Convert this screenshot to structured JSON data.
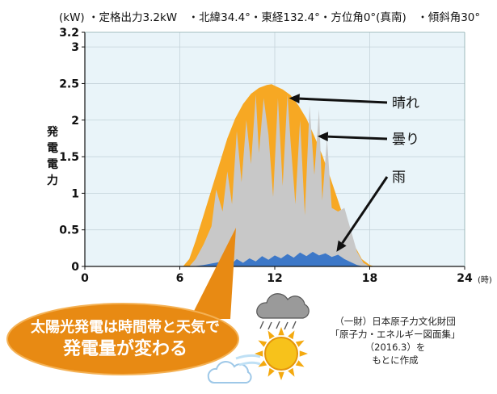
{
  "chart_data": {
    "type": "area",
    "subtitle": "(kW) ・定格出力3.2kW　・北緯34.4°・東経132.4°・方位角0°(真南)　・傾斜角30°",
    "unit_y": "(kW)",
    "unit_x": "(時)",
    "ylabel": "発電電力",
    "ylim": [
      0,
      3.2
    ],
    "xlim": [
      0,
      24
    ],
    "y_ticks": [
      "0",
      "0.5",
      "1",
      "1.5",
      "2",
      "2.5",
      "3",
      "3.2"
    ],
    "x_ticks": [
      "0",
      "6",
      "12",
      "18",
      "24"
    ],
    "grid": true,
    "series": [
      {
        "name": "晴れ",
        "color": "#f7a823",
        "x": [
          6.2,
          6.6,
          7.0,
          7.5,
          8.0,
          8.5,
          9.0,
          9.5,
          10.0,
          10.5,
          11.0,
          11.5,
          11.8,
          12.0,
          12.5,
          13.0,
          13.5,
          14.0,
          14.5,
          15.0,
          15.5,
          16.0,
          16.5,
          17.0,
          17.5,
          18.0,
          18.3
        ],
        "y": [
          0,
          0.1,
          0.35,
          0.7,
          1.05,
          1.4,
          1.75,
          2.02,
          2.22,
          2.36,
          2.44,
          2.48,
          2.49,
          2.47,
          2.42,
          2.34,
          2.2,
          2.02,
          1.78,
          1.52,
          1.22,
          0.9,
          0.58,
          0.3,
          0.1,
          0.02,
          0
        ]
      },
      {
        "name": "曇り",
        "color": "#c8c8c8",
        "x": [
          6.6,
          7.0,
          7.5,
          8.0,
          8.3,
          8.7,
          9.0,
          9.3,
          9.6,
          9.9,
          10.2,
          10.5,
          10.8,
          11.0,
          11.3,
          11.6,
          11.9,
          12.2,
          12.5,
          12.8,
          13.0,
          13.3,
          13.6,
          13.9,
          14.2,
          14.5,
          14.8,
          15.0,
          15.3,
          15.6,
          16.0,
          16.4,
          16.8,
          17.2,
          17.6,
          18.0
        ],
        "y": [
          0,
          0.1,
          0.3,
          0.55,
          1.05,
          0.75,
          1.3,
          0.85,
          1.85,
          1.15,
          2.0,
          1.4,
          2.35,
          1.55,
          2.3,
          1.8,
          0.95,
          2.3,
          1.1,
          2.35,
          1.7,
          0.85,
          2.0,
          0.7,
          2.2,
          1.25,
          2.15,
          0.9,
          1.75,
          0.8,
          0.75,
          0.8,
          0.5,
          0.2,
          0.05,
          0
        ]
      },
      {
        "name": "雨",
        "color": "#3d78c8",
        "x": [
          6.8,
          7.5,
          8.0,
          8.5,
          9.0,
          9.3,
          9.6,
          10.0,
          10.4,
          10.8,
          11.2,
          11.6,
          12.0,
          12.4,
          12.8,
          13.2,
          13.6,
          14.0,
          14.4,
          14.8,
          15.2,
          15.6,
          16.0,
          16.4,
          16.8,
          17.2,
          17.6
        ],
        "y": [
          0,
          0.02,
          0.04,
          0.06,
          0.09,
          0.04,
          0.1,
          0.05,
          0.11,
          0.07,
          0.14,
          0.09,
          0.15,
          0.11,
          0.17,
          0.12,
          0.19,
          0.14,
          0.2,
          0.15,
          0.18,
          0.13,
          0.16,
          0.1,
          0.06,
          0.02,
          0
        ]
      }
    ],
    "annotations": [
      {
        "text": "晴れ",
        "arrow_to": [
          12.9,
          2.3
        ]
      },
      {
        "text": "曇り",
        "arrow_to": [
          14.7,
          1.78
        ]
      },
      {
        "text": "雨",
        "arrow_to": [
          15.9,
          0.2
        ]
      }
    ],
    "callout": "太陽光発電は時間帯と天気で発電量が変わる",
    "callout_lines": [
      "太陽光発電は時間帯と天気で",
      "発電量が変わる"
    ],
    "source_lines": [
      "（一財）日本原子力文化財団",
      "「原子力・エネルギー図面集」（2016.3）を",
      "もとに作成"
    ],
    "icons": [
      "rain-cloud-icon",
      "sun-icon",
      "cloud-icon"
    ]
  }
}
